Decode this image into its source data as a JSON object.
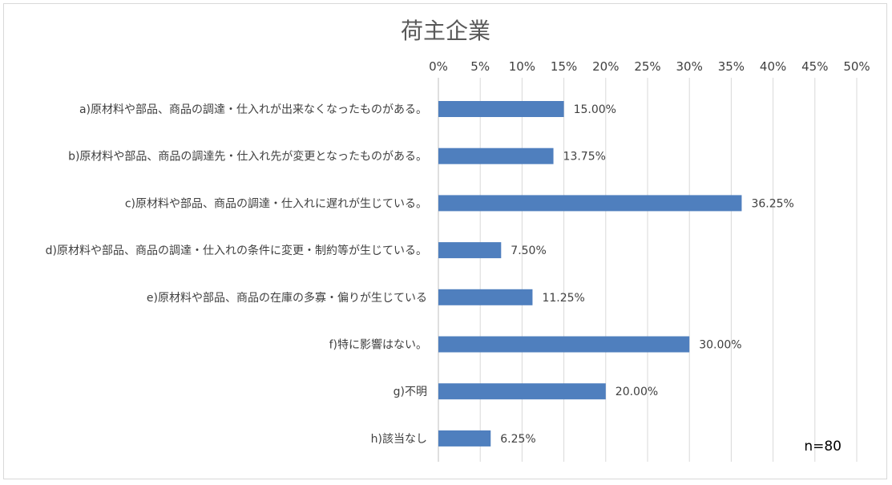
{
  "chart_data": {
    "type": "bar",
    "orientation": "horizontal",
    "title": "荷主企業",
    "categories": [
      "a)原材料や部品、商品の調達・仕入れが出来なくなったものがある。",
      "b)原材料や部品、商品の調達先・仕入れ先が変更となったものがある。",
      "c)原材料や部品、商品の調達・仕入れに遅れが生じている。",
      "d)原材料や部品、商品の調達・仕入れの条件に変更・制約等が生じている。",
      "e)原材料や部品、商品の在庫の多寡・偏りが生じている",
      "f)特に影響はない。",
      "g)不明",
      "h)該当なし"
    ],
    "values": [
      15.0,
      13.75,
      36.25,
      7.5,
      11.25,
      30.0,
      20.0,
      6.25
    ],
    "value_labels": [
      "15.00%",
      "13.75%",
      "36.25%",
      "7.50%",
      "11.25%",
      "30.00%",
      "20.00%",
      "6.25%"
    ],
    "xlim": [
      0,
      50
    ],
    "xticks": [
      0,
      5,
      10,
      15,
      20,
      25,
      30,
      35,
      40,
      45,
      50
    ],
    "xtick_labels": [
      "0%",
      "5%",
      "10%",
      "15%",
      "20%",
      "25%",
      "30%",
      "35%",
      "40%",
      "45%",
      "50%"
    ],
    "xaxis_position": "top",
    "grid": true,
    "bar_color": "#4F7FBE",
    "grid_color": "#d9d9d9",
    "legend": "none",
    "note": "n=80"
  }
}
